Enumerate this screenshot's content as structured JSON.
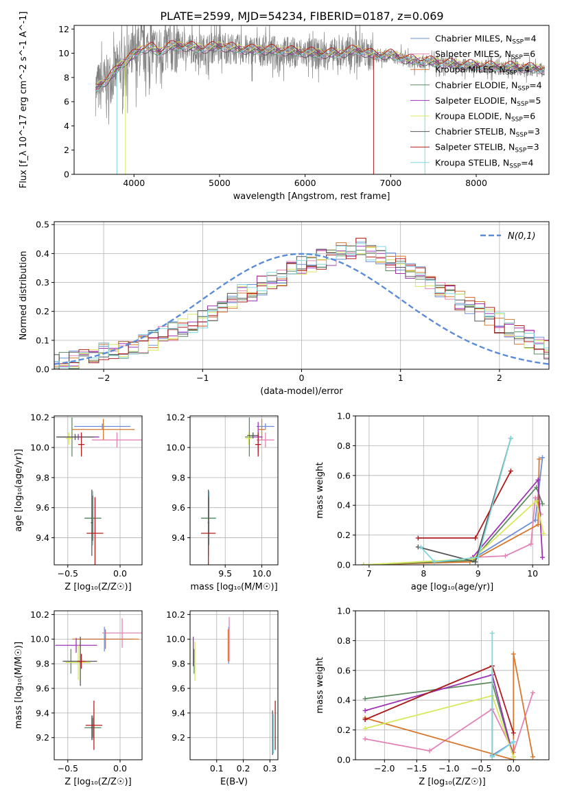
{
  "figure_title": "PLATE=2599, MJD=54234, FIBERID=0187, z=0.069",
  "model_labels": [
    {
      "name": "Chabrier MILES",
      "n": "4",
      "color": "#6a8fd8"
    },
    {
      "name": "Salpeter MILES",
      "n": "6",
      "color": "#e383b5"
    },
    {
      "name": "Kroupa MILES",
      "n": "4",
      "color": "#d8772d"
    },
    {
      "name": "Chabrier ELODIE",
      "n": "4",
      "color": "#5c8a60"
    },
    {
      "name": "Salpeter ELODIE",
      "n": "5",
      "color": "#9d32b4"
    },
    {
      "name": "Kroupa ELODIE",
      "n": "6",
      "color": "#d8e85a"
    },
    {
      "name": "Chabrier STELIB",
      "n": "3",
      "color": "#555555"
    },
    {
      "name": "Salpeter STELIB",
      "n": "3",
      "color": "#b01c1c"
    },
    {
      "name": "Kroupa STELIB",
      "n": "4",
      "color": "#7fd6dc"
    }
  ],
  "chart_data": [
    {
      "id": "spectrum",
      "type": "line",
      "title": "PLATE=2599, MJD=54234, FIBERID=0187, z=0.069",
      "xlabel": "wavelength [Angstrom, rest frame]",
      "ylabel": "Flux [f_λ 10^-17 erg cm^-2 s^-1 A^-1]",
      "xlim": [
        3300,
        8850
      ],
      "ylim": [
        0,
        12.3
      ],
      "xticks": [
        4000,
        5000,
        6000,
        7000,
        8000
      ],
      "yticks": [
        0,
        2,
        4,
        6,
        8,
        10,
        12
      ],
      "legend": "top-right",
      "grid": false,
      "data_color": "#808080",
      "continuum": [
        [
          3550,
          7.0
        ],
        [
          3700,
          7.8
        ],
        [
          3800,
          8.6
        ],
        [
          3900,
          9.3
        ],
        [
          4000,
          9.8
        ],
        [
          4100,
          10.3
        ],
        [
          4200,
          10.4
        ],
        [
          4300,
          10.0
        ],
        [
          4400,
          10.5
        ],
        [
          4600,
          10.5
        ],
        [
          4800,
          10.3
        ],
        [
          5000,
          10.5
        ],
        [
          5200,
          10.3
        ],
        [
          5400,
          10.2
        ],
        [
          5600,
          10.2
        ],
        [
          5800,
          10.1
        ],
        [
          6000,
          10.0
        ],
        [
          6200,
          9.9
        ],
        [
          6400,
          9.9
        ],
        [
          6600,
          10.2
        ],
        [
          6800,
          9.8
        ],
        [
          7000,
          9.8
        ],
        [
          7200,
          9.4
        ],
        [
          7400,
          9.3
        ],
        [
          7600,
          9.1
        ],
        [
          7800,
          9.0
        ],
        [
          8000,
          8.9
        ],
        [
          8200,
          8.8
        ],
        [
          8400,
          8.8
        ],
        [
          8600,
          8.7
        ],
        [
          8800,
          8.6
        ]
      ],
      "model_offsets": [
        0.1,
        -0.1,
        0.15,
        -0.05,
        0.05,
        0.2,
        -0.1,
        0.3,
        0.0
      ]
    },
    {
      "id": "residuals",
      "type": "step",
      "xlabel": "(data-model)/error",
      "ylabel": "Normed distribution",
      "xlim": [
        -2.5,
        2.5
      ],
      "ylim": [
        0,
        0.51
      ],
      "xticks": [
        -2,
        -1,
        0,
        1,
        2
      ],
      "yticks": [
        0.0,
        0.1,
        0.2,
        0.3,
        0.4,
        0.5
      ],
      "grid": true,
      "legend": "top-right",
      "gaussian": {
        "name": "N(0,1)",
        "mean": 0,
        "sigma": 1,
        "color": "#5b8bd8"
      },
      "bin_width": 0.1,
      "base_shape": [
        0.02,
        0.025,
        0.035,
        0.04,
        0.05,
        0.06,
        0.065,
        0.07,
        0.08,
        0.085,
        0.1,
        0.12,
        0.13,
        0.14,
        0.16,
        0.17,
        0.2,
        0.22,
        0.24,
        0.26,
        0.27,
        0.29,
        0.3,
        0.32,
        0.34,
        0.36,
        0.37,
        0.38,
        0.39,
        0.41,
        0.4,
        0.42,
        0.4,
        0.39,
        0.37,
        0.36,
        0.34,
        0.32,
        0.3,
        0.28,
        0.26,
        0.24,
        0.22,
        0.2,
        0.18,
        0.16,
        0.14,
        0.12,
        0.1,
        0.08,
        0.07
      ]
    },
    {
      "id": "age_vs_Z",
      "type": "errorbar",
      "xlabel": "Z [log10(Z/Z☉)]",
      "ylabel": "age [log10(age/yr)]",
      "xlim": [
        -0.63,
        0.21
      ],
      "ylim": [
        9.22,
        10.21
      ],
      "xticks": [
        -0.5,
        0.0
      ],
      "yticks": [
        9.4,
        9.6,
        9.8,
        10.0,
        10.2
      ],
      "grid": true,
      "points": [
        {
          "m": 0,
          "x": -0.17,
          "y": 10.14,
          "xe": 0.27,
          "ye": 0.02
        },
        {
          "m": 1,
          "x": -0.03,
          "y": 10.05,
          "xe": 0.24,
          "ye": 0.05
        },
        {
          "m": 2,
          "x": -0.16,
          "y": 10.12,
          "xe": 0.3,
          "ye": 0.07
        },
        {
          "m": 3,
          "x": -0.46,
          "y": 10.07,
          "xe": 0.07,
          "ye": 0.13
        },
        {
          "m": 4,
          "x": -0.4,
          "y": 10.07,
          "xe": 0.2,
          "ye": 0.02
        },
        {
          "m": 5,
          "x": -0.49,
          "y": 10.06,
          "xe": 0.03,
          "ye": 0.04
        },
        {
          "m": 6,
          "x": -0.43,
          "y": 10.07,
          "xe": 0.18,
          "ye": 0.02
        },
        {
          "m": 7,
          "x": -0.37,
          "y": 10.02,
          "xe": 0.03,
          "ye": 0.08
        },
        {
          "m": 8,
          "x": -0.26,
          "y": 9.53,
          "xe": 0.08,
          "ye": 0.18
        },
        {
          "m": 3,
          "x": -0.26,
          "y": 9.53,
          "xe": 0.08,
          "ye": 0.15
        },
        {
          "m": 6,
          "x": -0.27,
          "y": 9.5,
          "xe": 0.01,
          "ye": 0.22
        },
        {
          "m": 7,
          "x": -0.24,
          "y": 9.43,
          "xe": 0.08,
          "ye": 0.24
        }
      ]
    },
    {
      "id": "age_vs_mass",
      "type": "errorbar",
      "xlabel": "mass [log10(M/M☉)]",
      "ylabel": "",
      "xlim": [
        9.02,
        10.22
      ],
      "ylim": [
        9.22,
        10.21
      ],
      "xticks": [
        9.5,
        10.0
      ],
      "yticks": [
        9.4,
        9.6,
        9.8,
        10.0,
        10.2
      ],
      "grid": true,
      "points": [
        {
          "m": 0,
          "x": 10.05,
          "y": 10.14,
          "xe": 0.12,
          "ye": 0.02
        },
        {
          "m": 1,
          "x": 10.05,
          "y": 10.05,
          "xe": 0.12,
          "ye": 0.05
        },
        {
          "m": 2,
          "x": 10.0,
          "y": 10.12,
          "xe": 0.05,
          "ye": 0.07
        },
        {
          "m": 3,
          "x": 9.83,
          "y": 10.07,
          "xe": 0.06,
          "ye": 0.13
        },
        {
          "m": 4,
          "x": 9.95,
          "y": 10.07,
          "xe": 0.06,
          "ye": 0.1
        },
        {
          "m": 5,
          "x": 9.82,
          "y": 10.06,
          "xe": 0.04,
          "ye": 0.04
        },
        {
          "m": 6,
          "x": 9.88,
          "y": 10.08,
          "xe": 0.08,
          "ye": 0.02
        },
        {
          "m": 7,
          "x": 9.95,
          "y": 10.02,
          "xe": 0.04,
          "ye": 0.08
        },
        {
          "m": 8,
          "x": 9.28,
          "y": 9.53,
          "xe": 0.1,
          "ye": 0.18
        },
        {
          "m": 3,
          "x": 9.27,
          "y": 9.53,
          "xe": 0.1,
          "ye": 0.15
        },
        {
          "m": 6,
          "x": 9.27,
          "y": 9.5,
          "xe": 0.01,
          "ye": 0.22
        },
        {
          "m": 7,
          "x": 9.27,
          "y": 9.43,
          "xe": 0.1,
          "ye": 0.24
        }
      ]
    },
    {
      "id": "weight_vs_age",
      "type": "line",
      "xlabel": "age [log10(age/yr)]",
      "ylabel": "mass weight",
      "xlim": [
        6.75,
        10.3
      ],
      "ylim": [
        0,
        1.0
      ],
      "xticks": [
        7,
        8,
        9,
        10
      ],
      "yticks": [
        0.0,
        0.2,
        0.4,
        0.6,
        0.8,
        1.0
      ],
      "grid": true,
      "series": [
        {
          "m": 0,
          "points": [
            [
              8.9,
              0.04
            ],
            [
              10.05,
              0.3
            ],
            [
              10.18,
              0.72
            ]
          ]
        },
        {
          "m": 1,
          "points": [
            [
              8.9,
              0.05
            ],
            [
              9.5,
              0.06
            ],
            [
              9.97,
              0.14
            ],
            [
              10.05,
              0.45
            ],
            [
              10.15,
              0.34
            ]
          ]
        },
        {
          "m": 2,
          "points": [
            [
              6.9,
              0.0
            ],
            [
              8.85,
              0.02
            ],
            [
              10.1,
              0.27
            ],
            [
              10.12,
              0.71
            ]
          ]
        },
        {
          "m": 3,
          "points": [
            [
              6.9,
              0.0
            ],
            [
              8.9,
              0.03
            ],
            [
              10.07,
              0.52
            ],
            [
              10.18,
              0.41
            ]
          ]
        },
        {
          "m": 4,
          "points": [
            [
              8.9,
              0.05
            ],
            [
              10.1,
              0.57
            ],
            [
              10.18,
              0.05
            ]
          ]
        },
        {
          "m": 5,
          "points": [
            [
              6.9,
              0.0
            ],
            [
              8.9,
              0.04
            ],
            [
              10.07,
              0.43
            ],
            [
              10.2,
              0.21
            ]
          ]
        },
        {
          "m": 6,
          "points": [
            [
              7.9,
              0.12
            ],
            [
              8.95,
              0.02
            ],
            [
              9.6,
              0.85
            ]
          ]
        },
        {
          "m": 7,
          "points": [
            [
              7.9,
              0.18
            ],
            [
              8.95,
              0.18
            ],
            [
              9.6,
              0.63
            ]
          ]
        },
        {
          "m": 8,
          "points": [
            [
              7.95,
              0.12
            ],
            [
              8.2,
              0.02
            ],
            [
              9.0,
              0.05
            ],
            [
              9.6,
              0.85
            ]
          ]
        }
      ]
    },
    {
      "id": "mass_vs_Z",
      "type": "errorbar",
      "xlabel": "Z [log10(Z/Z☉)]",
      "ylabel": "mass [log10(M/M☉)]",
      "xlim": [
        -0.63,
        0.21
      ],
      "ylim": [
        9.02,
        10.23
      ],
      "xticks": [
        -0.5,
        0.0
      ],
      "yticks": [
        9.2,
        9.4,
        9.6,
        9.8,
        10.0,
        10.2
      ],
      "grid": true,
      "points": [
        {
          "m": 0,
          "x": -0.15,
          "y": 10.0,
          "xe": 0.27,
          "ye": 0.1
        },
        {
          "m": 1,
          "x": 0.02,
          "y": 10.05,
          "xe": 0.19,
          "ye": 0.12
        },
        {
          "m": 2,
          "x": -0.14,
          "y": 10.0,
          "xe": 0.32,
          "ye": 0.08
        },
        {
          "m": 3,
          "x": -0.47,
          "y": 9.82,
          "xe": 0.08,
          "ye": 0.1
        },
        {
          "m": 4,
          "x": -0.42,
          "y": 9.95,
          "xe": 0.2,
          "ye": 0.06
        },
        {
          "m": 5,
          "x": -0.4,
          "y": 9.81,
          "xe": 0.12,
          "ye": 0.14
        },
        {
          "m": 6,
          "x": -0.38,
          "y": 9.82,
          "xe": 0.16,
          "ye": 0.2
        },
        {
          "m": 7,
          "x": -0.37,
          "y": 9.82,
          "xe": 0.04,
          "ye": 0.06
        },
        {
          "m": 8,
          "x": -0.26,
          "y": 9.28,
          "xe": 0.08,
          "ye": 0.1
        },
        {
          "m": 3,
          "x": -0.26,
          "y": 9.28,
          "xe": 0.08,
          "ye": 0.08
        },
        {
          "m": 6,
          "x": -0.27,
          "y": 9.28,
          "xe": 0.01,
          "ye": 0.1
        },
        {
          "m": 7,
          "x": -0.25,
          "y": 9.3,
          "xe": 0.08,
          "ye": 0.2
        }
      ]
    },
    {
      "id": "mass_vs_ebv",
      "type": "errorbar",
      "xlabel": "E(B-V)",
      "ylabel": "",
      "xlim": [
        0.0,
        0.33
      ],
      "ylim": [
        9.02,
        10.23
      ],
      "xticks": [
        0.1,
        0.2,
        0.3
      ],
      "yticks": [
        9.2,
        9.4,
        9.6,
        9.8,
        10.0,
        10.2
      ],
      "grid": true,
      "points": [
        {
          "m": 0,
          "x": 0.145,
          "y": 9.95,
          "xe": 0.0,
          "ye": 0.15
        },
        {
          "m": 1,
          "x": 0.147,
          "y": 10.0,
          "xe": 0.0,
          "ye": 0.18
        },
        {
          "m": 2,
          "x": 0.143,
          "y": 9.95,
          "xe": 0.0,
          "ye": 0.13
        },
        {
          "m": 3,
          "x": 0.015,
          "y": 9.82,
          "xe": 0.0,
          "ye": 0.1
        },
        {
          "m": 4,
          "x": 0.012,
          "y": 9.9,
          "xe": 0.0,
          "ye": 0.12
        },
        {
          "m": 5,
          "x": 0.018,
          "y": 9.82,
          "xe": 0.0,
          "ye": 0.16
        },
        {
          "m": 6,
          "x": 0.31,
          "y": 9.24,
          "xe": 0.0,
          "ye": 0.18
        },
        {
          "m": 7,
          "x": 0.32,
          "y": 9.3,
          "xe": 0.0,
          "ye": 0.2
        },
        {
          "m": 8,
          "x": 0.313,
          "y": 9.23,
          "xe": 0.0,
          "ye": 0.16
        }
      ]
    },
    {
      "id": "weight_vs_Z",
      "type": "line",
      "xlabel": "Z [log10(Z/Z☉)]",
      "ylabel": "mass weight",
      "xlim": [
        -2.45,
        0.55
      ],
      "ylim": [
        0,
        1.0
      ],
      "xticks": [
        -2.0,
        -1.5,
        -1.0,
        -0.5,
        0.0
      ],
      "yticks": [
        0.0,
        0.2,
        0.4,
        0.6,
        0.8,
        1.0
      ],
      "grid": true,
      "series": [
        {
          "m": 0,
          "points": [
            [
              -0.33,
              0.03
            ],
            [
              0.0,
              0.12
            ],
            [
              0.0,
              0.05
            ]
          ]
        },
        {
          "m": 1,
          "points": [
            [
              -2.3,
              0.14
            ],
            [
              -1.3,
              0.06
            ],
            [
              -0.33,
              0.34
            ],
            [
              0.0,
              0.05
            ],
            [
              0.3,
              0.45
            ]
          ]
        },
        {
          "m": 2,
          "points": [
            [
              -2.3,
              0.28
            ],
            [
              0.0,
              0.0
            ],
            [
              0.0,
              0.71
            ],
            [
              0.3,
              0.02
            ]
          ]
        },
        {
          "m": 3,
          "points": [
            [
              -2.3,
              0.41
            ],
            [
              -0.33,
              0.52
            ],
            [
              0.0,
              0.02
            ]
          ]
        },
        {
          "m": 4,
          "points": [
            [
              -2.3,
              0.33
            ],
            [
              -0.33,
              0.57
            ],
            [
              0.0,
              0.02
            ]
          ]
        },
        {
          "m": 5,
          "points": [
            [
              -2.3,
              0.21
            ],
            [
              -0.33,
              0.43
            ],
            [
              0.0,
              0.02
            ]
          ]
        },
        {
          "m": 6,
          "points": [
            [
              -2.3,
              0.27
            ],
            [
              -0.33,
              0.63
            ],
            [
              -0.33,
              0.02
            ]
          ]
        },
        {
          "m": 7,
          "points": [
            [
              -2.3,
              0.27
            ],
            [
              -0.33,
              0.63
            ],
            [
              0.0,
              0.18
            ]
          ]
        },
        {
          "m": 8,
          "points": [
            [
              -0.33,
              0.85
            ],
            [
              -0.33,
              0.02
            ],
            [
              0.0,
              0.12
            ]
          ]
        }
      ]
    }
  ]
}
